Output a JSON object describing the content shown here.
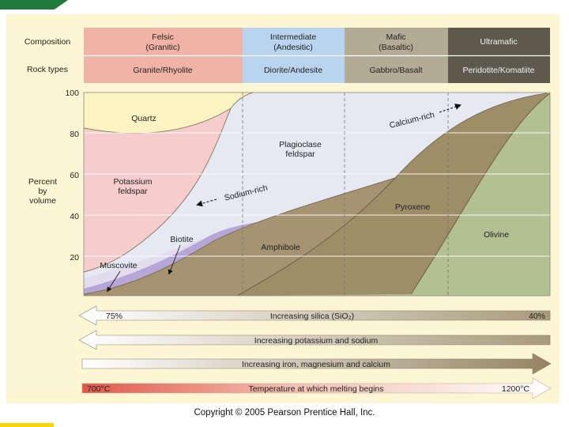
{
  "header": {
    "composition_label": "Composition",
    "rock_types_label": "Rock types",
    "columns": [
      {
        "composition": [
          "Felsic",
          "(Granitic)"
        ],
        "rock": "Granite/Rhyolite",
        "color": "#f1b3a6"
      },
      {
        "composition": [
          "Intermediate",
          "(Andesitic)"
        ],
        "rock": "Diorite/Andesite",
        "color": "#b9d4ef"
      },
      {
        "composition": [
          "Mafic",
          "(Basaltic)"
        ],
        "rock": "Gabbro/Basalt",
        "color": "#b3ab95"
      },
      {
        "composition": [
          "Ultramafic"
        ],
        "rock": "Peridotite/Komatiite",
        "color": "#5d5a4d"
      }
    ]
  },
  "y_axis": {
    "label": [
      "Percent",
      "by",
      "volume"
    ],
    "ticks": [
      "100",
      "80",
      "60",
      "40",
      "20"
    ]
  },
  "minerals": {
    "quartz": "Quartz",
    "potassium_feldspar": [
      "Potassium",
      "feldspar"
    ],
    "plagioclase": [
      "Plagioclase",
      "feldspar"
    ],
    "sodium_rich": "Sodium-rich",
    "calcium_rich": "Calcium-rich",
    "biotite": "Biotite",
    "muscovite": "Muscovite",
    "amphibole": "Amphibole",
    "pyroxene": "Pyroxene",
    "olivine": "Olivine"
  },
  "mineral_colors": {
    "quartz": "#fbf4c2",
    "potassium_feldspar": "#f6cccc",
    "plagioclase": "#e6e9f2",
    "biotite": "#b6a7d8",
    "muscovite": "#e2dcee",
    "amphibole": "#a69371",
    "pyroxene": "#9d8e68",
    "olivine": "#b3c091"
  },
  "arrows": {
    "silica": {
      "left": "75%",
      "middle": "Increasing silica (SiO₂)",
      "right": "40%"
    },
    "potassium_sodium": "Increasing potassium and sodium",
    "iron_mg_ca": "Increasing iron, magnesium and calcium",
    "temperature": {
      "left": "700°C",
      "middle": "Temperature at which melting begins",
      "right": "1200°C"
    }
  },
  "copyright": "Copyright © 2005 Pearson Prentice Hall, Inc."
}
